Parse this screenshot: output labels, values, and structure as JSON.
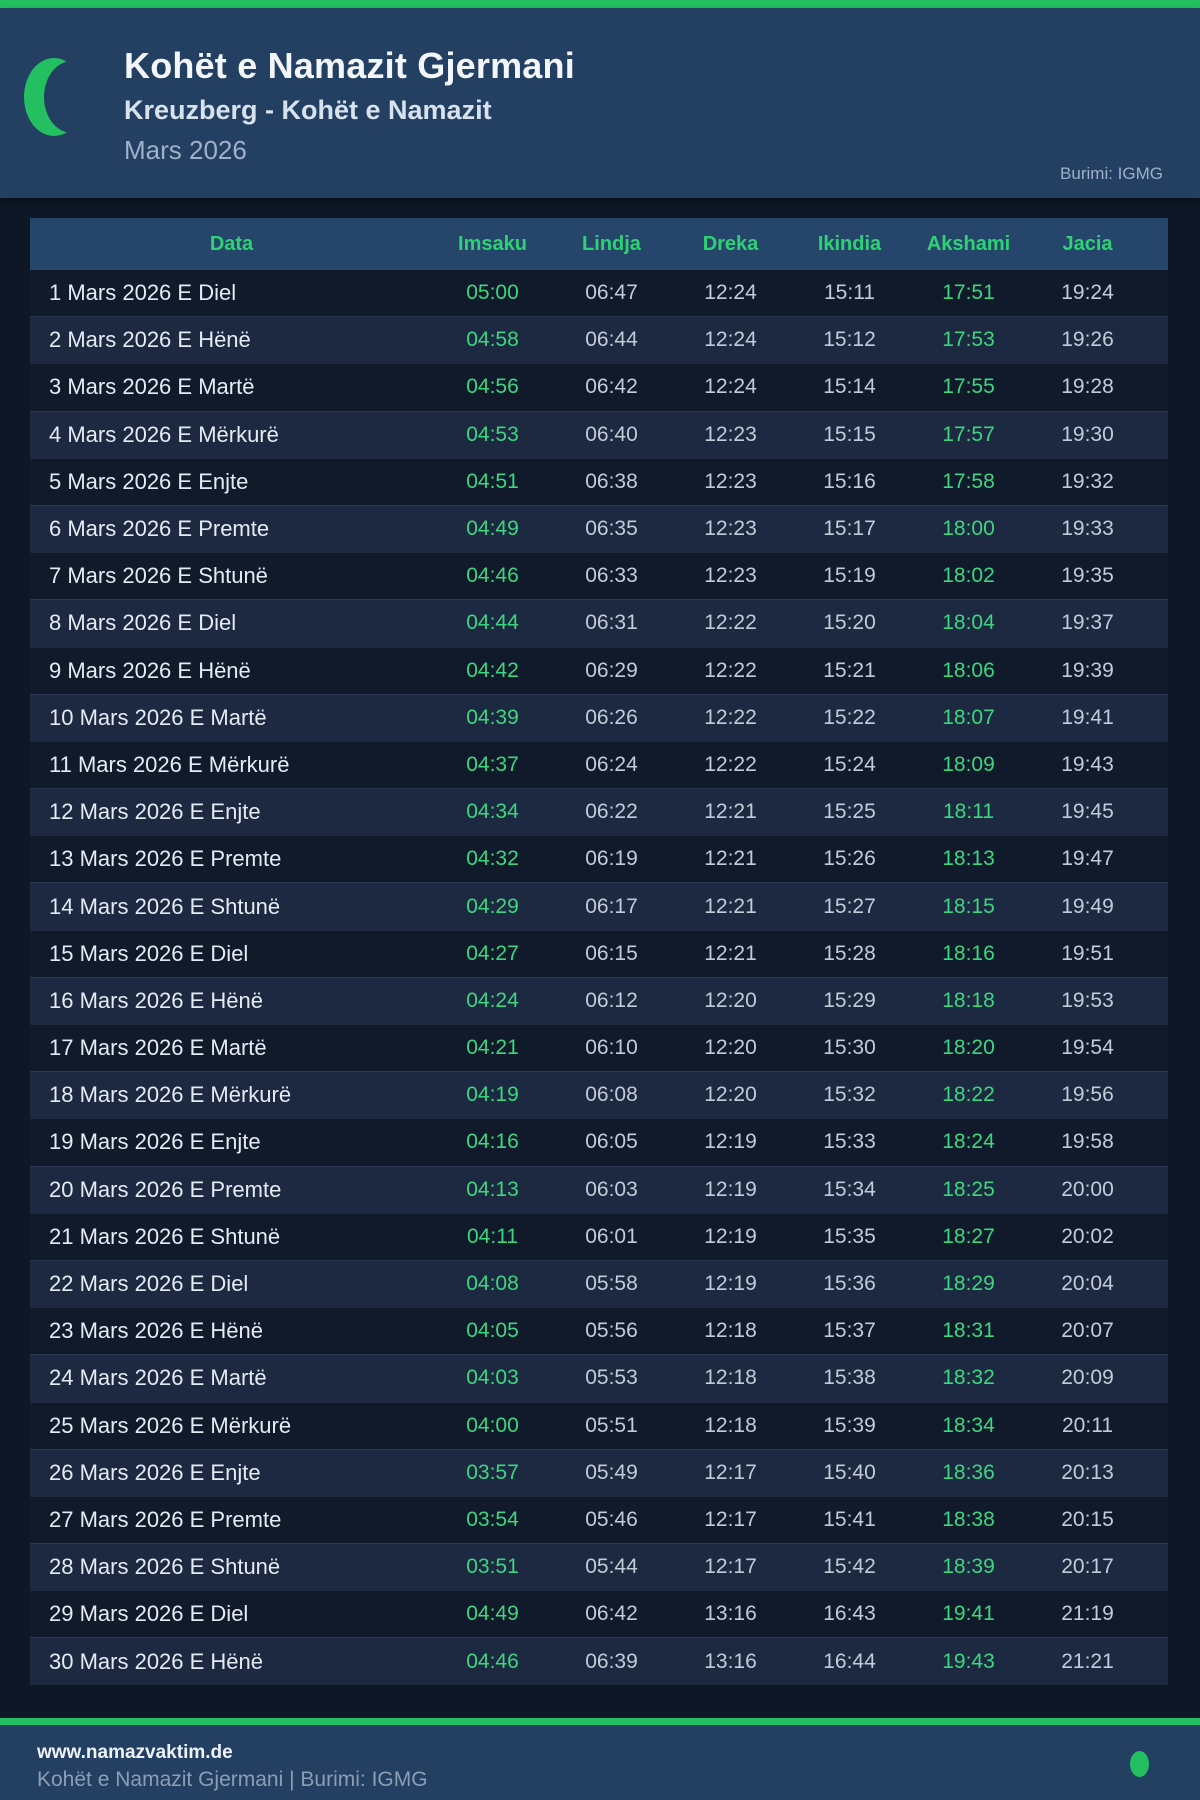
{
  "header": {
    "title": "Kohët e Namazit Gjermani",
    "subtitle": "Kreuzberg - Kohët e Namazit",
    "month": "Mars 2026",
    "source": "Burimi: IGMG"
  },
  "table": {
    "columns": [
      "Data",
      "Imsaku",
      "Lindja",
      "Dreka",
      "Ikindia",
      "Akshami",
      "Jacia"
    ],
    "rows": [
      {
        "date": "1 Mars 2026 E Diel",
        "times": [
          "05:00",
          "06:47",
          "12:24",
          "15:11",
          "17:51",
          "19:24"
        ]
      },
      {
        "date": "2 Mars 2026 E Hënë",
        "times": [
          "04:58",
          "06:44",
          "12:24",
          "15:12",
          "17:53",
          "19:26"
        ]
      },
      {
        "date": "3 Mars 2026 E Martë",
        "times": [
          "04:56",
          "06:42",
          "12:24",
          "15:14",
          "17:55",
          "19:28"
        ]
      },
      {
        "date": "4 Mars 2026 E Mërkurë",
        "times": [
          "04:53",
          "06:40",
          "12:23",
          "15:15",
          "17:57",
          "19:30"
        ]
      },
      {
        "date": "5 Mars 2026 E Enjte",
        "times": [
          "04:51",
          "06:38",
          "12:23",
          "15:16",
          "17:58",
          "19:32"
        ]
      },
      {
        "date": "6 Mars 2026 E Premte",
        "times": [
          "04:49",
          "06:35",
          "12:23",
          "15:17",
          "18:00",
          "19:33"
        ]
      },
      {
        "date": "7 Mars 2026 E Shtunë",
        "times": [
          "04:46",
          "06:33",
          "12:23",
          "15:19",
          "18:02",
          "19:35"
        ]
      },
      {
        "date": "8 Mars 2026 E Diel",
        "times": [
          "04:44",
          "06:31",
          "12:22",
          "15:20",
          "18:04",
          "19:37"
        ]
      },
      {
        "date": "9 Mars 2026 E Hënë",
        "times": [
          "04:42",
          "06:29",
          "12:22",
          "15:21",
          "18:06",
          "19:39"
        ]
      },
      {
        "date": "10 Mars 2026 E Martë",
        "times": [
          "04:39",
          "06:26",
          "12:22",
          "15:22",
          "18:07",
          "19:41"
        ]
      },
      {
        "date": "11 Mars 2026 E Mërkurë",
        "times": [
          "04:37",
          "06:24",
          "12:22",
          "15:24",
          "18:09",
          "19:43"
        ]
      },
      {
        "date": "12 Mars 2026 E Enjte",
        "times": [
          "04:34",
          "06:22",
          "12:21",
          "15:25",
          "18:11",
          "19:45"
        ]
      },
      {
        "date": "13 Mars 2026 E Premte",
        "times": [
          "04:32",
          "06:19",
          "12:21",
          "15:26",
          "18:13",
          "19:47"
        ]
      },
      {
        "date": "14 Mars 2026 E Shtunë",
        "times": [
          "04:29",
          "06:17",
          "12:21",
          "15:27",
          "18:15",
          "19:49"
        ]
      },
      {
        "date": "15 Mars 2026 E Diel",
        "times": [
          "04:27",
          "06:15",
          "12:21",
          "15:28",
          "18:16",
          "19:51"
        ]
      },
      {
        "date": "16 Mars 2026 E Hënë",
        "times": [
          "04:24",
          "06:12",
          "12:20",
          "15:29",
          "18:18",
          "19:53"
        ]
      },
      {
        "date": "17 Mars 2026 E Martë",
        "times": [
          "04:21",
          "06:10",
          "12:20",
          "15:30",
          "18:20",
          "19:54"
        ]
      },
      {
        "date": "18 Mars 2026 E Mërkurë",
        "times": [
          "04:19",
          "06:08",
          "12:20",
          "15:32",
          "18:22",
          "19:56"
        ]
      },
      {
        "date": "19 Mars 2026 E Enjte",
        "times": [
          "04:16",
          "06:05",
          "12:19",
          "15:33",
          "18:24",
          "19:58"
        ]
      },
      {
        "date": "20 Mars 2026 E Premte",
        "times": [
          "04:13",
          "06:03",
          "12:19",
          "15:34",
          "18:25",
          "20:00"
        ]
      },
      {
        "date": "21 Mars 2026 E Shtunë",
        "times": [
          "04:11",
          "06:01",
          "12:19",
          "15:35",
          "18:27",
          "20:02"
        ]
      },
      {
        "date": "22 Mars 2026 E Diel",
        "times": [
          "04:08",
          "05:58",
          "12:19",
          "15:36",
          "18:29",
          "20:04"
        ]
      },
      {
        "date": "23 Mars 2026 E Hënë",
        "times": [
          "04:05",
          "05:56",
          "12:18",
          "15:37",
          "18:31",
          "20:07"
        ]
      },
      {
        "date": "24 Mars 2026 E Martë",
        "times": [
          "04:03",
          "05:53",
          "12:18",
          "15:38",
          "18:32",
          "20:09"
        ]
      },
      {
        "date": "25 Mars 2026 E Mërkurë",
        "times": [
          "04:00",
          "05:51",
          "12:18",
          "15:39",
          "18:34",
          "20:11"
        ]
      },
      {
        "date": "26 Mars 2026 E Enjte",
        "times": [
          "03:57",
          "05:49",
          "12:17",
          "15:40",
          "18:36",
          "20:13"
        ]
      },
      {
        "date": "27 Mars 2026 E Premte",
        "times": [
          "03:54",
          "05:46",
          "12:17",
          "15:41",
          "18:38",
          "20:15"
        ]
      },
      {
        "date": "28 Mars 2026 E Shtunë",
        "times": [
          "03:51",
          "05:44",
          "12:17",
          "15:42",
          "18:39",
          "20:17"
        ]
      },
      {
        "date": "29 Mars 2026 E Diel",
        "times": [
          "04:49",
          "06:42",
          "13:16",
          "16:43",
          "19:41",
          "21:19"
        ]
      },
      {
        "date": "30 Mars 2026 E Hënë",
        "times": [
          "04:46",
          "06:39",
          "13:16",
          "16:44",
          "19:43",
          "21:21"
        ]
      }
    ]
  },
  "footer": {
    "website": "www.namazvaktim.de",
    "caption": "Kohët e Namazit Gjermani | Burimi: IGMG"
  },
  "colors": {
    "accent_green": "#23bf61",
    "header_green": "#2ed274",
    "time_green": "#3bd77f",
    "page_header_bg": "#233f62",
    "table_header_bg": "#26456b",
    "body_bg": "#0e1726",
    "row_dark": "#101a2b",
    "row_light": "#1d2940"
  }
}
